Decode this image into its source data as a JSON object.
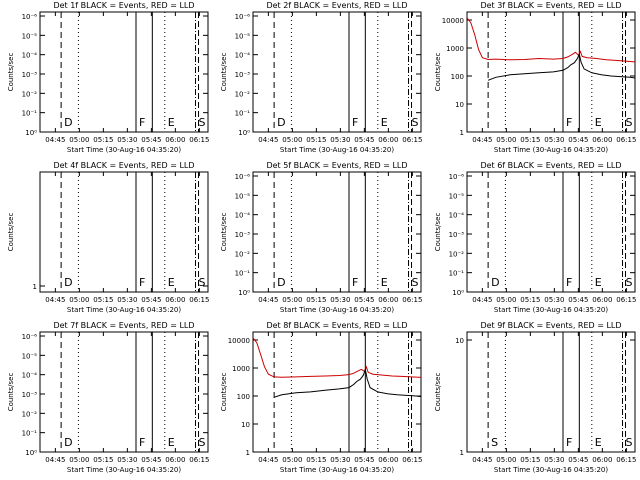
{
  "common": {
    "xlabel": "Start Time (30-Aug-16 04:35:20)",
    "ylabel": "Counts/sec",
    "x_ticks": [
      "04:45",
      "05:00",
      "05:15",
      "05:30",
      "05:45",
      "06:00",
      "06:15"
    ],
    "colors": {
      "events": "#000000",
      "lld": "#cc0000",
      "axes": "#000000"
    }
  },
  "chart_data": [
    {
      "title": "Det 1f BLACK = Events, RED = LLD",
      "type": "line",
      "scale": "small",
      "y_ticks": [
        "10⁰",
        "10⁻¹",
        "10⁻²",
        "10⁻³",
        "10⁻⁴",
        "10⁻⁵",
        "10⁻⁶"
      ],
      "markers": [
        {
          "t": 0.22,
          "label": "D",
          "style": "dashed"
        },
        {
          "t": 0.4,
          "label": "",
          "style": "dotted"
        },
        {
          "t": 1.0,
          "label": "F",
          "style": "solid"
        },
        {
          "t": 1.17,
          "label": "",
          "style": "solid"
        },
        {
          "t": 1.3,
          "label": "E",
          "style": "dotted"
        },
        {
          "t": 1.62,
          "label": "S",
          "style": "dashdot"
        }
      ],
      "series": []
    },
    {
      "title": "Det 2f BLACK = Events, RED = LLD",
      "type": "line",
      "scale": "small",
      "y_ticks": [
        "10⁰",
        "10⁻¹",
        "10⁻²",
        "10⁻³",
        "10⁻⁴",
        "10⁻⁵",
        "10⁻⁶"
      ],
      "markers": [
        {
          "t": 0.22,
          "label": "D",
          "style": "dashed"
        },
        {
          "t": 0.4,
          "label": "",
          "style": "dotted"
        },
        {
          "t": 1.0,
          "label": "F",
          "style": "solid"
        },
        {
          "t": 1.17,
          "label": "",
          "style": "solid"
        },
        {
          "t": 1.3,
          "label": "E",
          "style": "dotted"
        },
        {
          "t": 1.62,
          "label": "S",
          "style": "dashdot"
        }
      ],
      "series": []
    },
    {
      "title": "Det 3f BLACK = Events, RED = LLD",
      "type": "line",
      "scale": "log",
      "ylim": [
        1,
        10000
      ],
      "y_ticks": [
        "1",
        "10",
        "100",
        "1000",
        "10000"
      ],
      "markers": [
        {
          "t": 0.22,
          "label": "",
          "style": "dashed"
        },
        {
          "t": 0.4,
          "label": "",
          "style": "dotted"
        },
        {
          "t": 1.0,
          "label": "F",
          "style": "solid"
        },
        {
          "t": 1.17,
          "label": "",
          "style": "solid"
        },
        {
          "t": 1.3,
          "label": "E",
          "style": "dotted"
        },
        {
          "t": 1.62,
          "label": "S",
          "style": "dashdot"
        }
      ],
      "series": [
        {
          "color": "lld",
          "t": [
            0,
            0.04,
            0.08,
            0.12,
            0.16,
            0.22,
            0.3,
            0.45,
            0.6,
            0.75,
            0.9,
            1.0,
            1.05,
            1.1,
            1.13,
            1.16,
            1.18,
            1.2,
            1.25,
            1.35,
            1.45,
            1.55,
            1.65,
            1.75
          ],
          "y": [
            12000,
            8000,
            3000,
            900,
            450,
            390,
            400,
            380,
            390,
            420,
            400,
            420,
            480,
            600,
            700,
            550,
            750,
            500,
            450,
            420,
            380,
            360,
            340,
            320
          ]
        },
        {
          "color": "events",
          "t": [
            0.22,
            0.3,
            0.45,
            0.6,
            0.75,
            0.9,
            1.0,
            1.05,
            1.08,
            1.12,
            1.15,
            1.17,
            1.19,
            1.22,
            1.3,
            1.4,
            1.5,
            1.6,
            1.7,
            1.75
          ],
          "y": [
            70,
            90,
            110,
            120,
            130,
            140,
            160,
            200,
            250,
            300,
            420,
            600,
            300,
            180,
            130,
            110,
            100,
            95,
            90,
            85
          ]
        }
      ]
    },
    {
      "title": "Det 4f BLACK = Events, RED = LLD",
      "type": "line",
      "scale": "single",
      "y_ticks": [
        "1"
      ],
      "markers": [
        {
          "t": 0.22,
          "label": "D",
          "style": "dashed"
        },
        {
          "t": 0.4,
          "label": "",
          "style": "dotted"
        },
        {
          "t": 1.0,
          "label": "F",
          "style": "solid"
        },
        {
          "t": 1.17,
          "label": "",
          "style": "solid"
        },
        {
          "t": 1.3,
          "label": "E",
          "style": "dotted"
        },
        {
          "t": 1.62,
          "label": "S",
          "style": "dashdot"
        }
      ],
      "series": []
    },
    {
      "title": "Det 5f BLACK = Events, RED = LLD",
      "type": "line",
      "scale": "small",
      "y_ticks": [
        "10⁰",
        "10⁻¹",
        "10⁻²",
        "10⁻³",
        "10⁻⁴",
        "10⁻⁵",
        "10⁻⁶"
      ],
      "markers": [
        {
          "t": 0.22,
          "label": "D",
          "style": "dashed"
        },
        {
          "t": 0.4,
          "label": "",
          "style": "dotted"
        },
        {
          "t": 1.0,
          "label": "F",
          "style": "solid"
        },
        {
          "t": 1.17,
          "label": "",
          "style": "solid"
        },
        {
          "t": 1.3,
          "label": "E",
          "style": "dotted"
        },
        {
          "t": 1.62,
          "label": "S",
          "style": "dashdot"
        }
      ],
      "series": []
    },
    {
      "title": "Det 6f BLACK = Events, RED = LLD",
      "type": "line",
      "scale": "small",
      "y_ticks": [
        "10⁰",
        "10⁻¹",
        "10⁻²",
        "10⁻³",
        "10⁻⁴",
        "10⁻⁵",
        "10⁻⁶"
      ],
      "markers": [
        {
          "t": 0.22,
          "label": "D",
          "style": "dashed"
        },
        {
          "t": 0.4,
          "label": "",
          "style": "dotted"
        },
        {
          "t": 1.0,
          "label": "F",
          "style": "solid"
        },
        {
          "t": 1.17,
          "label": "",
          "style": "solid"
        },
        {
          "t": 1.3,
          "label": "E",
          "style": "dotted"
        },
        {
          "t": 1.62,
          "label": "S",
          "style": "dashdot"
        }
      ],
      "series": []
    },
    {
      "title": "Det 7f BLACK = Events, RED = LLD",
      "type": "line",
      "scale": "small",
      "y_ticks": [
        "10⁰",
        "10⁻¹",
        "10⁻²",
        "10⁻³",
        "10⁻⁴",
        "10⁻⁵",
        "10⁻⁶"
      ],
      "markers": [
        {
          "t": 0.22,
          "label": "D",
          "style": "dashed"
        },
        {
          "t": 0.4,
          "label": "",
          "style": "dotted"
        },
        {
          "t": 1.0,
          "label": "F",
          "style": "solid"
        },
        {
          "t": 1.17,
          "label": "",
          "style": "solid"
        },
        {
          "t": 1.3,
          "label": "E",
          "style": "dotted"
        },
        {
          "t": 1.62,
          "label": "S",
          "style": "dashdot"
        }
      ],
      "series": []
    },
    {
      "title": "Det 8f BLACK = Events, RED = LLD",
      "type": "line",
      "scale": "log",
      "ylim": [
        1,
        10000
      ],
      "y_ticks": [
        "1",
        "10",
        "100",
        "1000",
        "10000"
      ],
      "markers": [
        {
          "t": 0.22,
          "label": "",
          "style": "dashed"
        },
        {
          "t": 0.4,
          "label": "",
          "style": "dotted"
        },
        {
          "t": 1.0,
          "label": "",
          "style": "solid"
        },
        {
          "t": 1.17,
          "label": "",
          "style": "solid"
        },
        {
          "t": 1.3,
          "label": "",
          "style": "dotted"
        },
        {
          "t": 1.62,
          "label": "",
          "style": "dashdot"
        }
      ],
      "series": [
        {
          "color": "lld",
          "t": [
            0,
            0.04,
            0.08,
            0.12,
            0.16,
            0.22,
            0.3,
            0.45,
            0.6,
            0.75,
            0.9,
            1.0,
            1.05,
            1.1,
            1.13,
            1.16,
            1.18,
            1.2,
            1.25,
            1.35,
            1.45,
            1.55,
            1.65,
            1.75
          ],
          "y": [
            12000,
            8000,
            3000,
            1100,
            600,
            480,
            470,
            480,
            500,
            520,
            540,
            580,
            650,
            800,
            900,
            750,
            1100,
            700,
            600,
            560,
            520,
            500,
            480,
            460
          ]
        },
        {
          "color": "events",
          "t": [
            0.22,
            0.3,
            0.45,
            0.6,
            0.75,
            0.9,
            1.0,
            1.05,
            1.08,
            1.12,
            1.15,
            1.17,
            1.19,
            1.22,
            1.3,
            1.4,
            1.5,
            1.6,
            1.7,
            1.75
          ],
          "y": [
            90,
            110,
            130,
            140,
            160,
            180,
            200,
            260,
            330,
            400,
            560,
            900,
            400,
            200,
            140,
            120,
            110,
            105,
            100,
            95
          ]
        }
      ]
    },
    {
      "title": "Det 9f BLACK = Events, RED = LLD",
      "type": "line",
      "scale": "single",
      "y_ticks": [
        "1",
        "10"
      ],
      "markers": [
        {
          "t": 0.22,
          "label": "S",
          "style": "dashed"
        },
        {
          "t": 0.4,
          "label": "",
          "style": "dotted"
        },
        {
          "t": 1.0,
          "label": "F",
          "style": "solid"
        },
        {
          "t": 1.17,
          "label": "",
          "style": "solid"
        },
        {
          "t": 1.3,
          "label": "E",
          "style": "dotted"
        },
        {
          "t": 1.62,
          "label": "S",
          "style": "dashdot"
        }
      ],
      "series": []
    }
  ]
}
